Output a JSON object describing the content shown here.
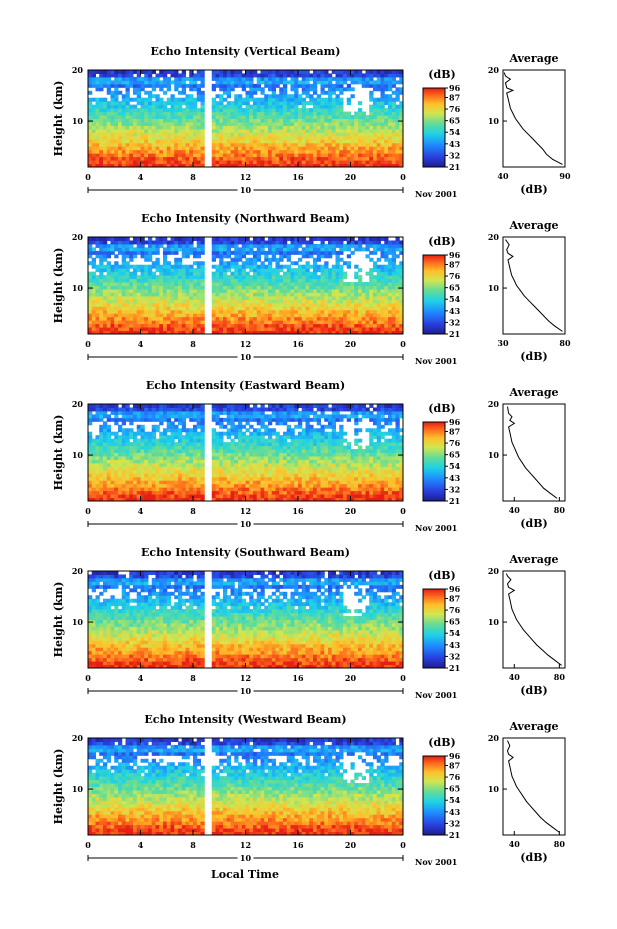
{
  "figure": {
    "xlabel": "Local Time",
    "date_label": "Nov 2001",
    "day_label": "10"
  },
  "chart_data": [
    {
      "type": "heatmap",
      "title": "Echo Intensity (Vertical Beam)",
      "ylabel": "Height (km)",
      "xlabel": "Local Time",
      "x_ticks": [
        "0",
        "4",
        "8",
        "12",
        "16",
        "20",
        "0"
      ],
      "y_ticks": [
        "10",
        "20"
      ],
      "xlim": [
        0,
        24
      ],
      "ylim": [
        1,
        20
      ],
      "colorbar": {
        "label": "(dB)",
        "ticks": [
          "96",
          "87",
          "76",
          "65",
          "54",
          "43",
          "32",
          "21"
        ],
        "range": [
          21,
          96
        ]
      },
      "data_gap_hours": [
        9.0,
        9.4
      ],
      "profile": {
        "title": "Average",
        "xlabel": "(dB)",
        "x_ticks": [
          "40",
          "90"
        ],
        "xlim": [
          40,
          90
        ],
        "y_ticks": [
          "10",
          "20"
        ],
        "points": [
          [
            88,
            1.5
          ],
          [
            80,
            2.5
          ],
          [
            75,
            3.5
          ],
          [
            72,
            4.5
          ],
          [
            68,
            5.5
          ],
          [
            64,
            6.5
          ],
          [
            60,
            7.5
          ],
          [
            56,
            8.5
          ],
          [
            53,
            9.5
          ],
          [
            50,
            10.5
          ],
          [
            48,
            11.5
          ],
          [
            46,
            12.5
          ],
          [
            45,
            13.5
          ],
          [
            44,
            14.5
          ],
          [
            43,
            15.5
          ],
          [
            48,
            16.0
          ],
          [
            43,
            16.5
          ],
          [
            42,
            17.5
          ],
          [
            46,
            18.2
          ],
          [
            42,
            18.8
          ],
          [
            41,
            19.5
          ]
        ]
      }
    },
    {
      "type": "heatmap",
      "title": "Echo Intensity (Northward Beam)",
      "ylabel": "Height (km)",
      "xlabel": "Local Time",
      "x_ticks": [
        "0",
        "4",
        "8",
        "12",
        "16",
        "20",
        "0"
      ],
      "y_ticks": [
        "10",
        "20"
      ],
      "xlim": [
        0,
        24
      ],
      "ylim": [
        1,
        20
      ],
      "colorbar": {
        "label": "(dB)",
        "ticks": [
          "96",
          "87",
          "76",
          "65",
          "54",
          "43",
          "32",
          "21"
        ],
        "range": [
          21,
          96
        ]
      },
      "data_gap_hours": [
        9.0,
        9.4
      ],
      "profile": {
        "title": "Average",
        "xlabel": "(dB)",
        "x_ticks": [
          "30",
          "80"
        ],
        "xlim": [
          30,
          80
        ],
        "y_ticks": [
          "10",
          "20"
        ],
        "points": [
          [
            78,
            1.5
          ],
          [
            72,
            2.5
          ],
          [
            67,
            3.5
          ],
          [
            63,
            4.5
          ],
          [
            59,
            5.5
          ],
          [
            55,
            6.5
          ],
          [
            51,
            7.5
          ],
          [
            47,
            8.5
          ],
          [
            44,
            9.5
          ],
          [
            41,
            10.5
          ],
          [
            39,
            11.5
          ],
          [
            37,
            12.5
          ],
          [
            36,
            13.5
          ],
          [
            35,
            14.5
          ],
          [
            34,
            15.5
          ],
          [
            38,
            16.2
          ],
          [
            34,
            16.8
          ],
          [
            33,
            17.5
          ],
          [
            35,
            18.5
          ],
          [
            32,
            19.5
          ]
        ]
      }
    },
    {
      "type": "heatmap",
      "title": "Echo Intensity (Eastward Beam)",
      "ylabel": "Height (km)",
      "xlabel": "Local Time",
      "x_ticks": [
        "0",
        "4",
        "8",
        "12",
        "16",
        "20",
        "0"
      ],
      "y_ticks": [
        "10",
        "20"
      ],
      "xlim": [
        0,
        24
      ],
      "ylim": [
        1,
        20
      ],
      "colorbar": {
        "label": "(dB)",
        "ticks": [
          "96",
          "87",
          "76",
          "65",
          "54",
          "43",
          "32",
          "21"
        ],
        "range": [
          21,
          96
        ]
      },
      "data_gap_hours": [
        9.0,
        9.4
      ],
      "profile": {
        "title": "Average",
        "xlabel": "(dB)",
        "x_ticks": [
          "40",
          "80"
        ],
        "xlim": [
          30,
          85
        ],
        "y_ticks": [
          "10",
          "20"
        ],
        "points": [
          [
            78,
            1.5
          ],
          [
            72,
            2.5
          ],
          [
            66,
            3.5
          ],
          [
            62,
            4.5
          ],
          [
            58,
            5.5
          ],
          [
            54,
            6.5
          ],
          [
            50,
            7.5
          ],
          [
            47,
            8.5
          ],
          [
            44,
            9.5
          ],
          [
            42,
            10.5
          ],
          [
            40,
            11.5
          ],
          [
            38,
            12.5
          ],
          [
            37,
            13.5
          ],
          [
            36,
            14.5
          ],
          [
            35,
            15.5
          ],
          [
            40,
            16.2
          ],
          [
            36,
            16.8
          ],
          [
            38,
            17.5
          ],
          [
            35,
            18.2
          ],
          [
            34,
            19.5
          ]
        ]
      }
    },
    {
      "type": "heatmap",
      "title": "Echo Intensity (Southward Beam)",
      "ylabel": "Height (km)",
      "xlabel": "Local Time",
      "x_ticks": [
        "0",
        "4",
        "8",
        "12",
        "16",
        "20",
        "0"
      ],
      "y_ticks": [
        "10",
        "20"
      ],
      "xlim": [
        0,
        24
      ],
      "ylim": [
        1,
        20
      ],
      "colorbar": {
        "label": "(dB)",
        "ticks": [
          "96",
          "87",
          "76",
          "65",
          "54",
          "43",
          "32",
          "21"
        ],
        "range": [
          21,
          96
        ]
      },
      "data_gap_hours": [
        9.0,
        9.4
      ],
      "profile": {
        "title": "Average",
        "xlabel": "(dB)",
        "x_ticks": [
          "40",
          "80"
        ],
        "xlim": [
          30,
          85
        ],
        "y_ticks": [
          "10",
          "20"
        ],
        "points": [
          [
            82,
            1.5
          ],
          [
            76,
            2.5
          ],
          [
            70,
            3.5
          ],
          [
            65,
            4.5
          ],
          [
            60,
            5.5
          ],
          [
            56,
            6.5
          ],
          [
            52,
            7.5
          ],
          [
            48,
            8.5
          ],
          [
            45,
            9.5
          ],
          [
            42,
            10.5
          ],
          [
            40,
            11.5
          ],
          [
            38,
            12.5
          ],
          [
            37,
            13.5
          ],
          [
            36,
            14.5
          ],
          [
            35,
            15.5
          ],
          [
            40,
            16.2
          ],
          [
            35,
            16.8
          ],
          [
            34,
            17.5
          ],
          [
            37,
            18.3
          ],
          [
            34,
            19.0
          ],
          [
            33,
            19.5
          ]
        ]
      }
    },
    {
      "type": "heatmap",
      "title": "Echo Intensity (Westward Beam)",
      "ylabel": "Height (km)",
      "xlabel": "Local Time",
      "x_ticks": [
        "0",
        "4",
        "8",
        "12",
        "16",
        "20",
        "0"
      ],
      "y_ticks": [
        "10",
        "20"
      ],
      "xlim": [
        0,
        24
      ],
      "ylim": [
        1,
        20
      ],
      "colorbar": {
        "label": "(dB)",
        "ticks": [
          "96",
          "87",
          "76",
          "65",
          "54",
          "43",
          "32",
          "21"
        ],
        "range": [
          21,
          96
        ]
      },
      "data_gap_hours": [
        9.0,
        9.4
      ],
      "profile": {
        "title": "Average",
        "xlabel": "(dB)",
        "x_ticks": [
          "40",
          "80"
        ],
        "xlim": [
          30,
          85
        ],
        "y_ticks": [
          "10",
          "20"
        ],
        "points": [
          [
            80,
            1.5
          ],
          [
            74,
            2.5
          ],
          [
            68,
            3.5
          ],
          [
            63,
            4.5
          ],
          [
            59,
            5.5
          ],
          [
            55,
            6.5
          ],
          [
            51,
            7.5
          ],
          [
            48,
            8.5
          ],
          [
            45,
            9.5
          ],
          [
            42,
            10.5
          ],
          [
            40,
            11.5
          ],
          [
            38,
            12.5
          ],
          [
            37,
            13.5
          ],
          [
            36,
            14.5
          ],
          [
            35,
            15.5
          ],
          [
            39,
            16.2
          ],
          [
            35,
            16.8
          ],
          [
            34,
            17.5
          ],
          [
            36,
            18.5
          ],
          [
            34,
            19.5
          ]
        ]
      }
    }
  ]
}
